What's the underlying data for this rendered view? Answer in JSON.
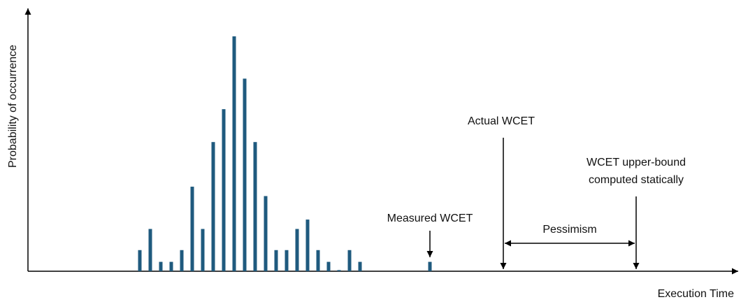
{
  "colors": {
    "bar": "#1f5a7e",
    "axis": "#000000",
    "text": "#111111"
  },
  "chart_data": {
    "type": "bar",
    "xlabel": "Execution Time",
    "ylabel": "Probability of occurrence",
    "xlim": [
      0,
      100
    ],
    "ylim": [
      0,
      100
    ],
    "grid": false,
    "legend": "none",
    "x": [
      16,
      17.5,
      19,
      20.5,
      22,
      23.5,
      25,
      26.5,
      28,
      29.5,
      31,
      32.5,
      34,
      35.5,
      37,
      38.5,
      40,
      41.5,
      43,
      44.5,
      46,
      47.5,
      49,
      50.5,
      57.5
    ],
    "values": [
      9,
      18,
      4,
      4,
      9,
      36,
      18,
      55,
      69,
      100,
      82,
      55,
      32,
      9,
      9,
      18,
      22,
      9,
      4,
      0.5,
      9,
      4,
      0,
      0,
      4
    ],
    "annotations": {
      "measured": {
        "label": "Measured WCET",
        "x": 57.5
      },
      "actual": {
        "label": "Actual WCET",
        "x": 68
      },
      "upper": {
        "label_line1": "WCET upper-bound",
        "label_line2": "computed statically",
        "x": 87
      },
      "pessimism": {
        "label": "Pessimism",
        "from": 68,
        "to": 87
      }
    }
  }
}
